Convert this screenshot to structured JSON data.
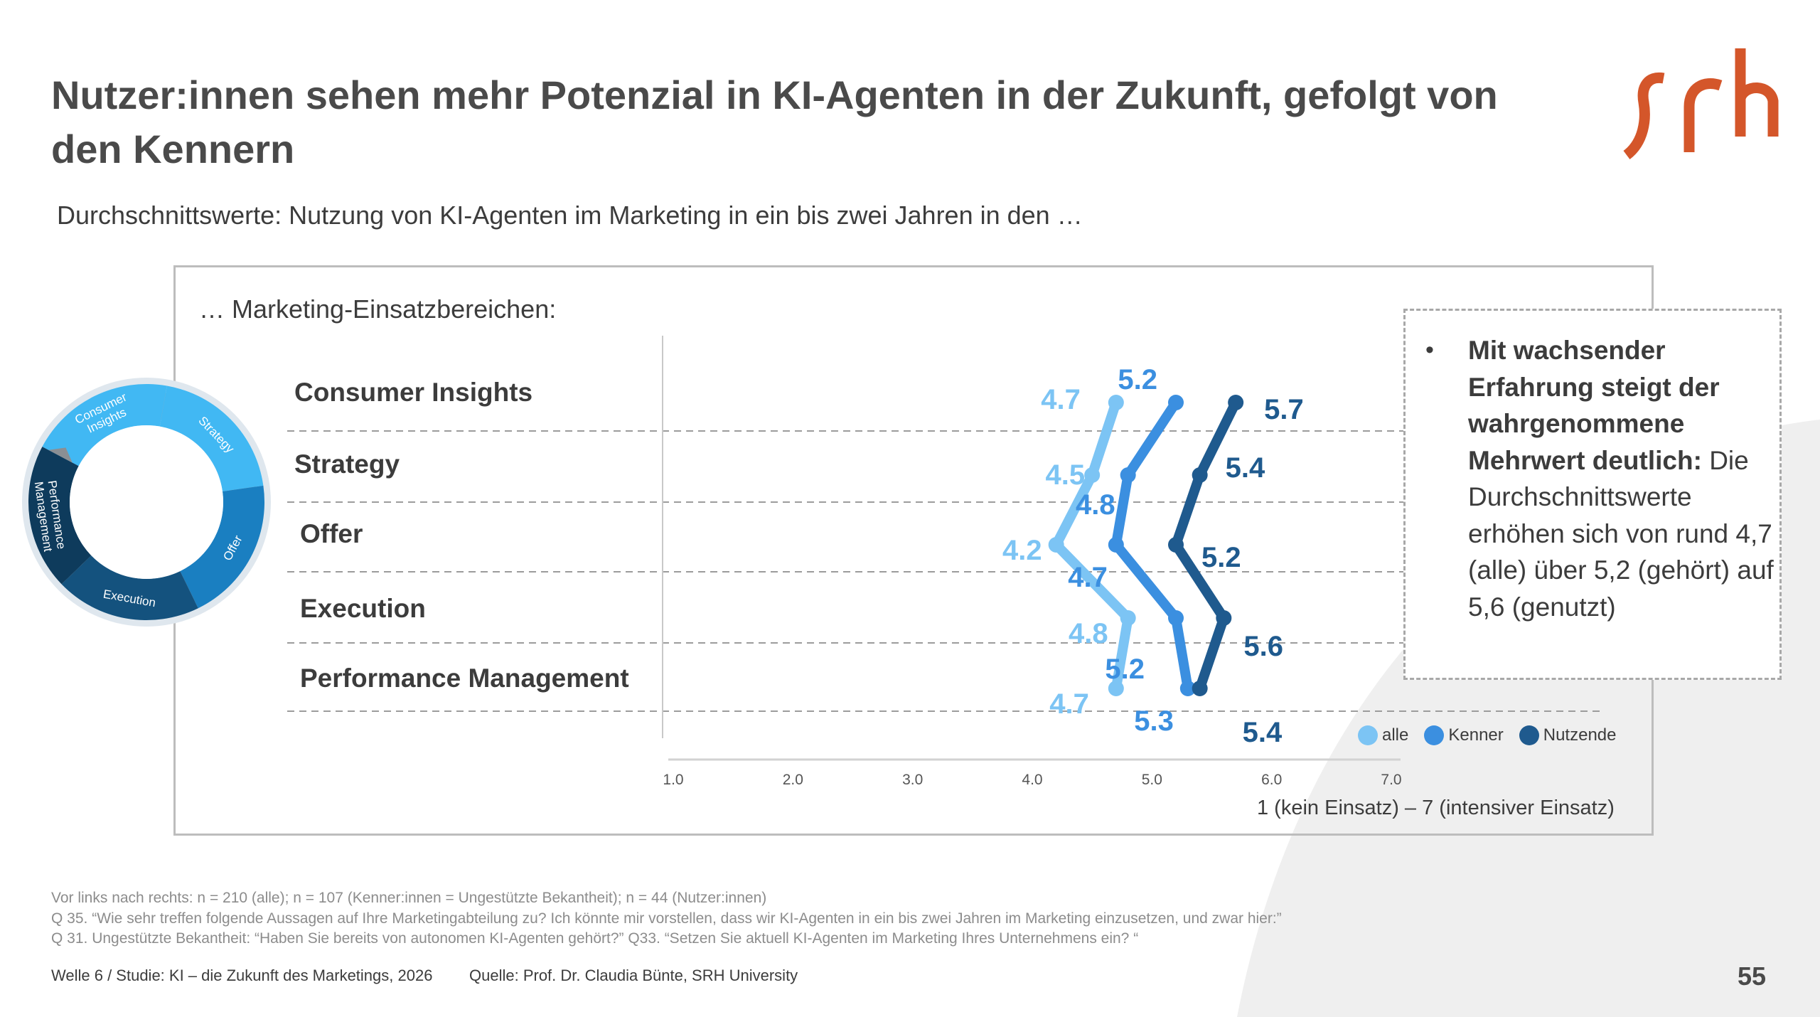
{
  "title": "Nutzer:innen sehen mehr Potenzial in KI-Agenten in der Zukunft, gefolgt von den Kennern",
  "subtitle": "Durchschnittswerte: Nutzung von KI-Agenten im Marketing in ein bis zwei Jahren in den …",
  "logo_text": "srh",
  "colors": {
    "accent": "#d4562a",
    "alle": "#7cc4f4",
    "kenner": "#3b8fe0",
    "nutzende": "#1f5a8e",
    "ring_light": "#41b8f3",
    "ring_mid": "#1a7fc1",
    "ring_dark": "#14527e",
    "ring_darkest": "#0e3b5c"
  },
  "ring": {
    "segments": [
      "Consumer Insights",
      "Strategy",
      "Offer",
      "Execution",
      "Performance Management"
    ]
  },
  "note": {
    "bullet": "•",
    "bold": "Mit wachsender Erfahrung steigt der wahrgenommene Mehrwert deutlich:",
    "text": "Die Durchschnittswerte erhöhen sich von rund 4,7 (alle) über 5,2 (gehört) auf 5,6 (genutzt)"
  },
  "chart_data": {
    "type": "line",
    "orientation": "horizontal",
    "title": "… Marketing-Einsatzbereichen:",
    "categories": [
      "Consumer Insights",
      "Strategy",
      "Offer",
      "Execution",
      "Performance Management"
    ],
    "series": [
      {
        "name": "alle",
        "values": [
          4.7,
          4.5,
          4.2,
          4.8,
          4.7
        ]
      },
      {
        "name": "Kenner",
        "values": [
          5.2,
          4.8,
          4.7,
          5.2,
          5.3
        ]
      },
      {
        "name": "Nutzende",
        "values": [
          5.7,
          5.4,
          5.2,
          5.6,
          5.4
        ]
      }
    ],
    "value_labels": [
      [
        "4.7",
        "4.5",
        "4.2",
        "4.8",
        "4.7"
      ],
      [
        "5.2",
        "4.8",
        "4.7",
        "5.2",
        "5.3"
      ],
      [
        "5.7",
        "5.4",
        "5.2",
        "5.6",
        "5.4"
      ]
    ],
    "xlim": [
      1.0,
      7.0
    ],
    "xticks": [
      "1.0",
      "2.0",
      "3.0",
      "4.0",
      "5.0",
      "6.0",
      "7.0"
    ],
    "xlabel": "1  (kein Einsatz) – 7 (intensiver Einsatz)",
    "legend": "bottom-right"
  },
  "footnotes": [
    "Vor links nach rechts: n = 210 (alle); n = 107 (Kenner:innen = Ungestützte Bekantheit); n = 44 (Nutzer:innen)",
    "Q 35. “Wie sehr treffen folgende Aussagen auf Ihre Marketingabteilung zu? Ich könnte mir vorstellen, dass wir KI-Agenten in ein bis zwei Jahren im Marketing einzusetzen, und zwar hier:”",
    "Q 31. Ungestützte Bekantheit: “Haben Sie bereits von autonomen KI-Agenten gehört?” Q33. “Setzen Sie aktuell KI-Agenten im Marketing Ihres Unternehmens ein? “"
  ],
  "footer": {
    "left": "Welle 6 / Studie: KI – die Zukunft des Marketings, 2026",
    "source": "Quelle: Prof. Dr. Claudia Bünte, SRH University",
    "page": "55"
  }
}
